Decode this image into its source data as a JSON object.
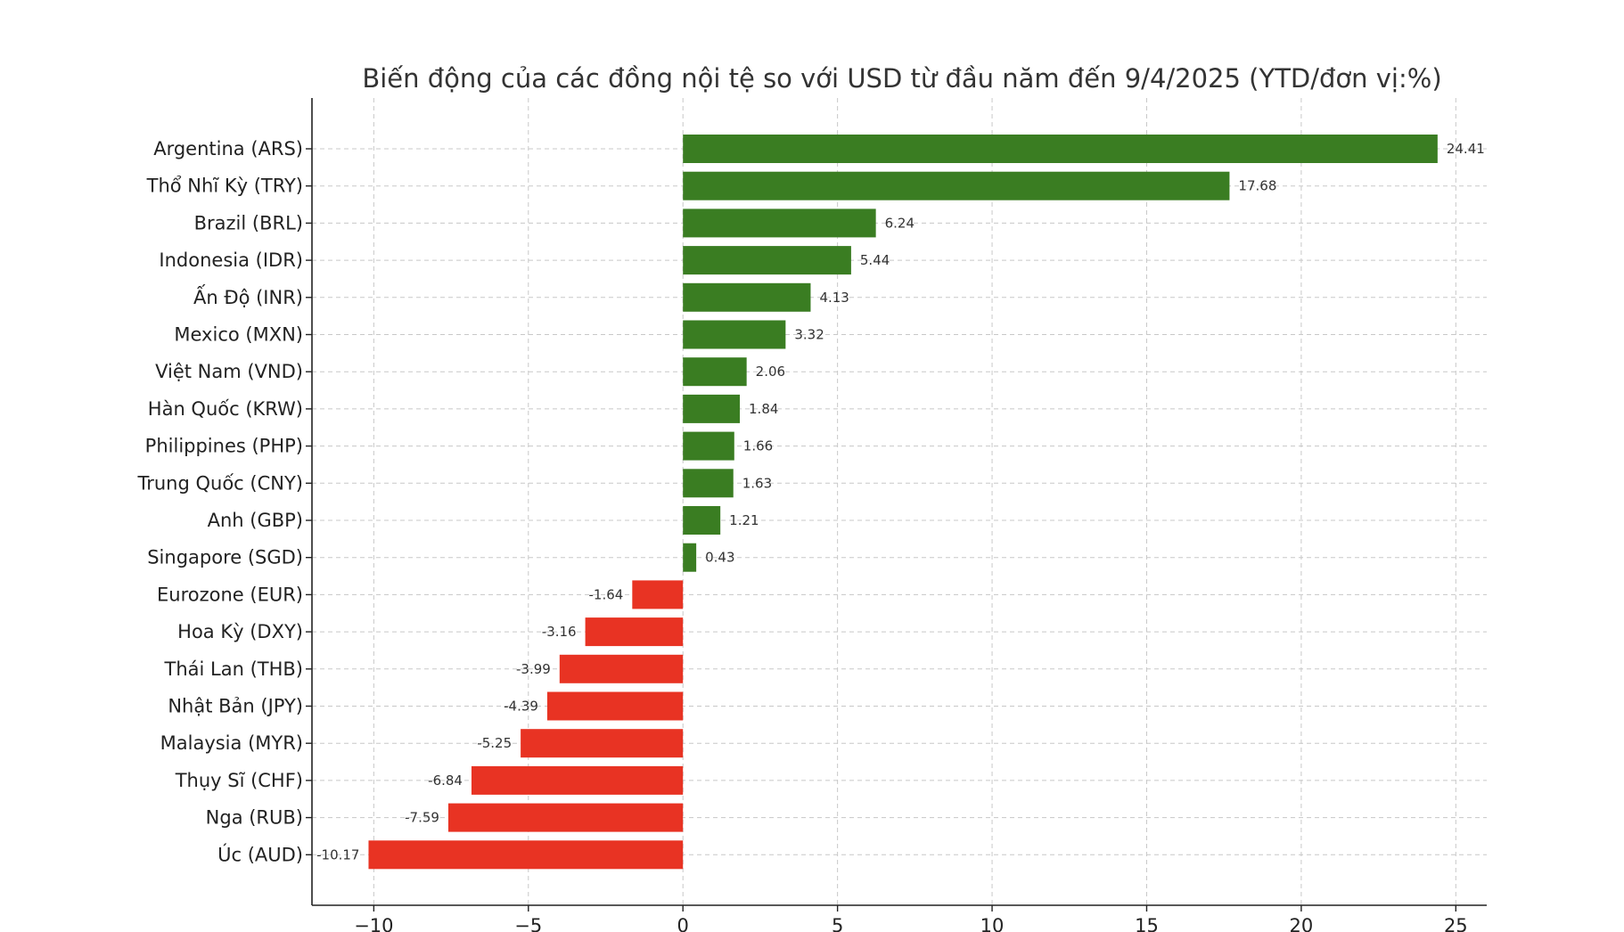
{
  "chart_data": {
    "type": "bar",
    "orientation": "horizontal",
    "title": "Biến động của các đồng nội tệ so với USD từ đầu năm đến 9/4/2025 (YTD/đơn vị:%)",
    "xlabel": "",
    "ylabel": "",
    "xlim": [
      -12,
      26
    ],
    "xticks": [
      -10,
      -5,
      0,
      5,
      10,
      15,
      20,
      25
    ],
    "xtick_labels": [
      "−10",
      "−5",
      "0",
      "5",
      "10",
      "15",
      "20",
      "25"
    ],
    "grid": true,
    "legend": "none",
    "categories": [
      "Argentina (ARS)",
      "Thổ Nhĩ Kỳ (TRY)",
      "Brazil (BRL)",
      "Indonesia (IDR)",
      "Ấn Độ (INR)",
      "Mexico (MXN)",
      "Việt Nam (VND)",
      "Hàn Quốc (KRW)",
      "Philippines (PHP)",
      "Trung Quốc (CNY)",
      "Anh (GBP)",
      "Singapore (SGD)",
      "Eurozone (EUR)",
      "Hoa Kỳ (DXY)",
      "Thái Lan (THB)",
      "Nhật Bản (JPY)",
      "Malaysia (MYR)",
      "Thụy Sĩ (CHF)",
      "Nga (RUB)",
      "Úc (AUD)"
    ],
    "values": [
      24.41,
      17.68,
      6.24,
      5.44,
      4.13,
      3.32,
      2.06,
      1.84,
      1.66,
      1.63,
      1.21,
      0.43,
      -1.64,
      -3.16,
      -3.99,
      -4.39,
      -5.25,
      -6.84,
      -7.59,
      -10.17
    ],
    "value_labels": [
      "24.41",
      "17.68",
      "6.24",
      "5.44",
      "4.13",
      "3.32",
      "2.06",
      "1.84",
      "1.66",
      "1.63",
      "1.21",
      "0.43",
      "-1.64",
      "-3.16",
      "-3.99",
      "-4.39",
      "-5.25",
      "-6.84",
      "-7.59",
      "-10.17"
    ],
    "colors": {
      "positive": "#3a7d22",
      "negative": "#e83323"
    }
  }
}
